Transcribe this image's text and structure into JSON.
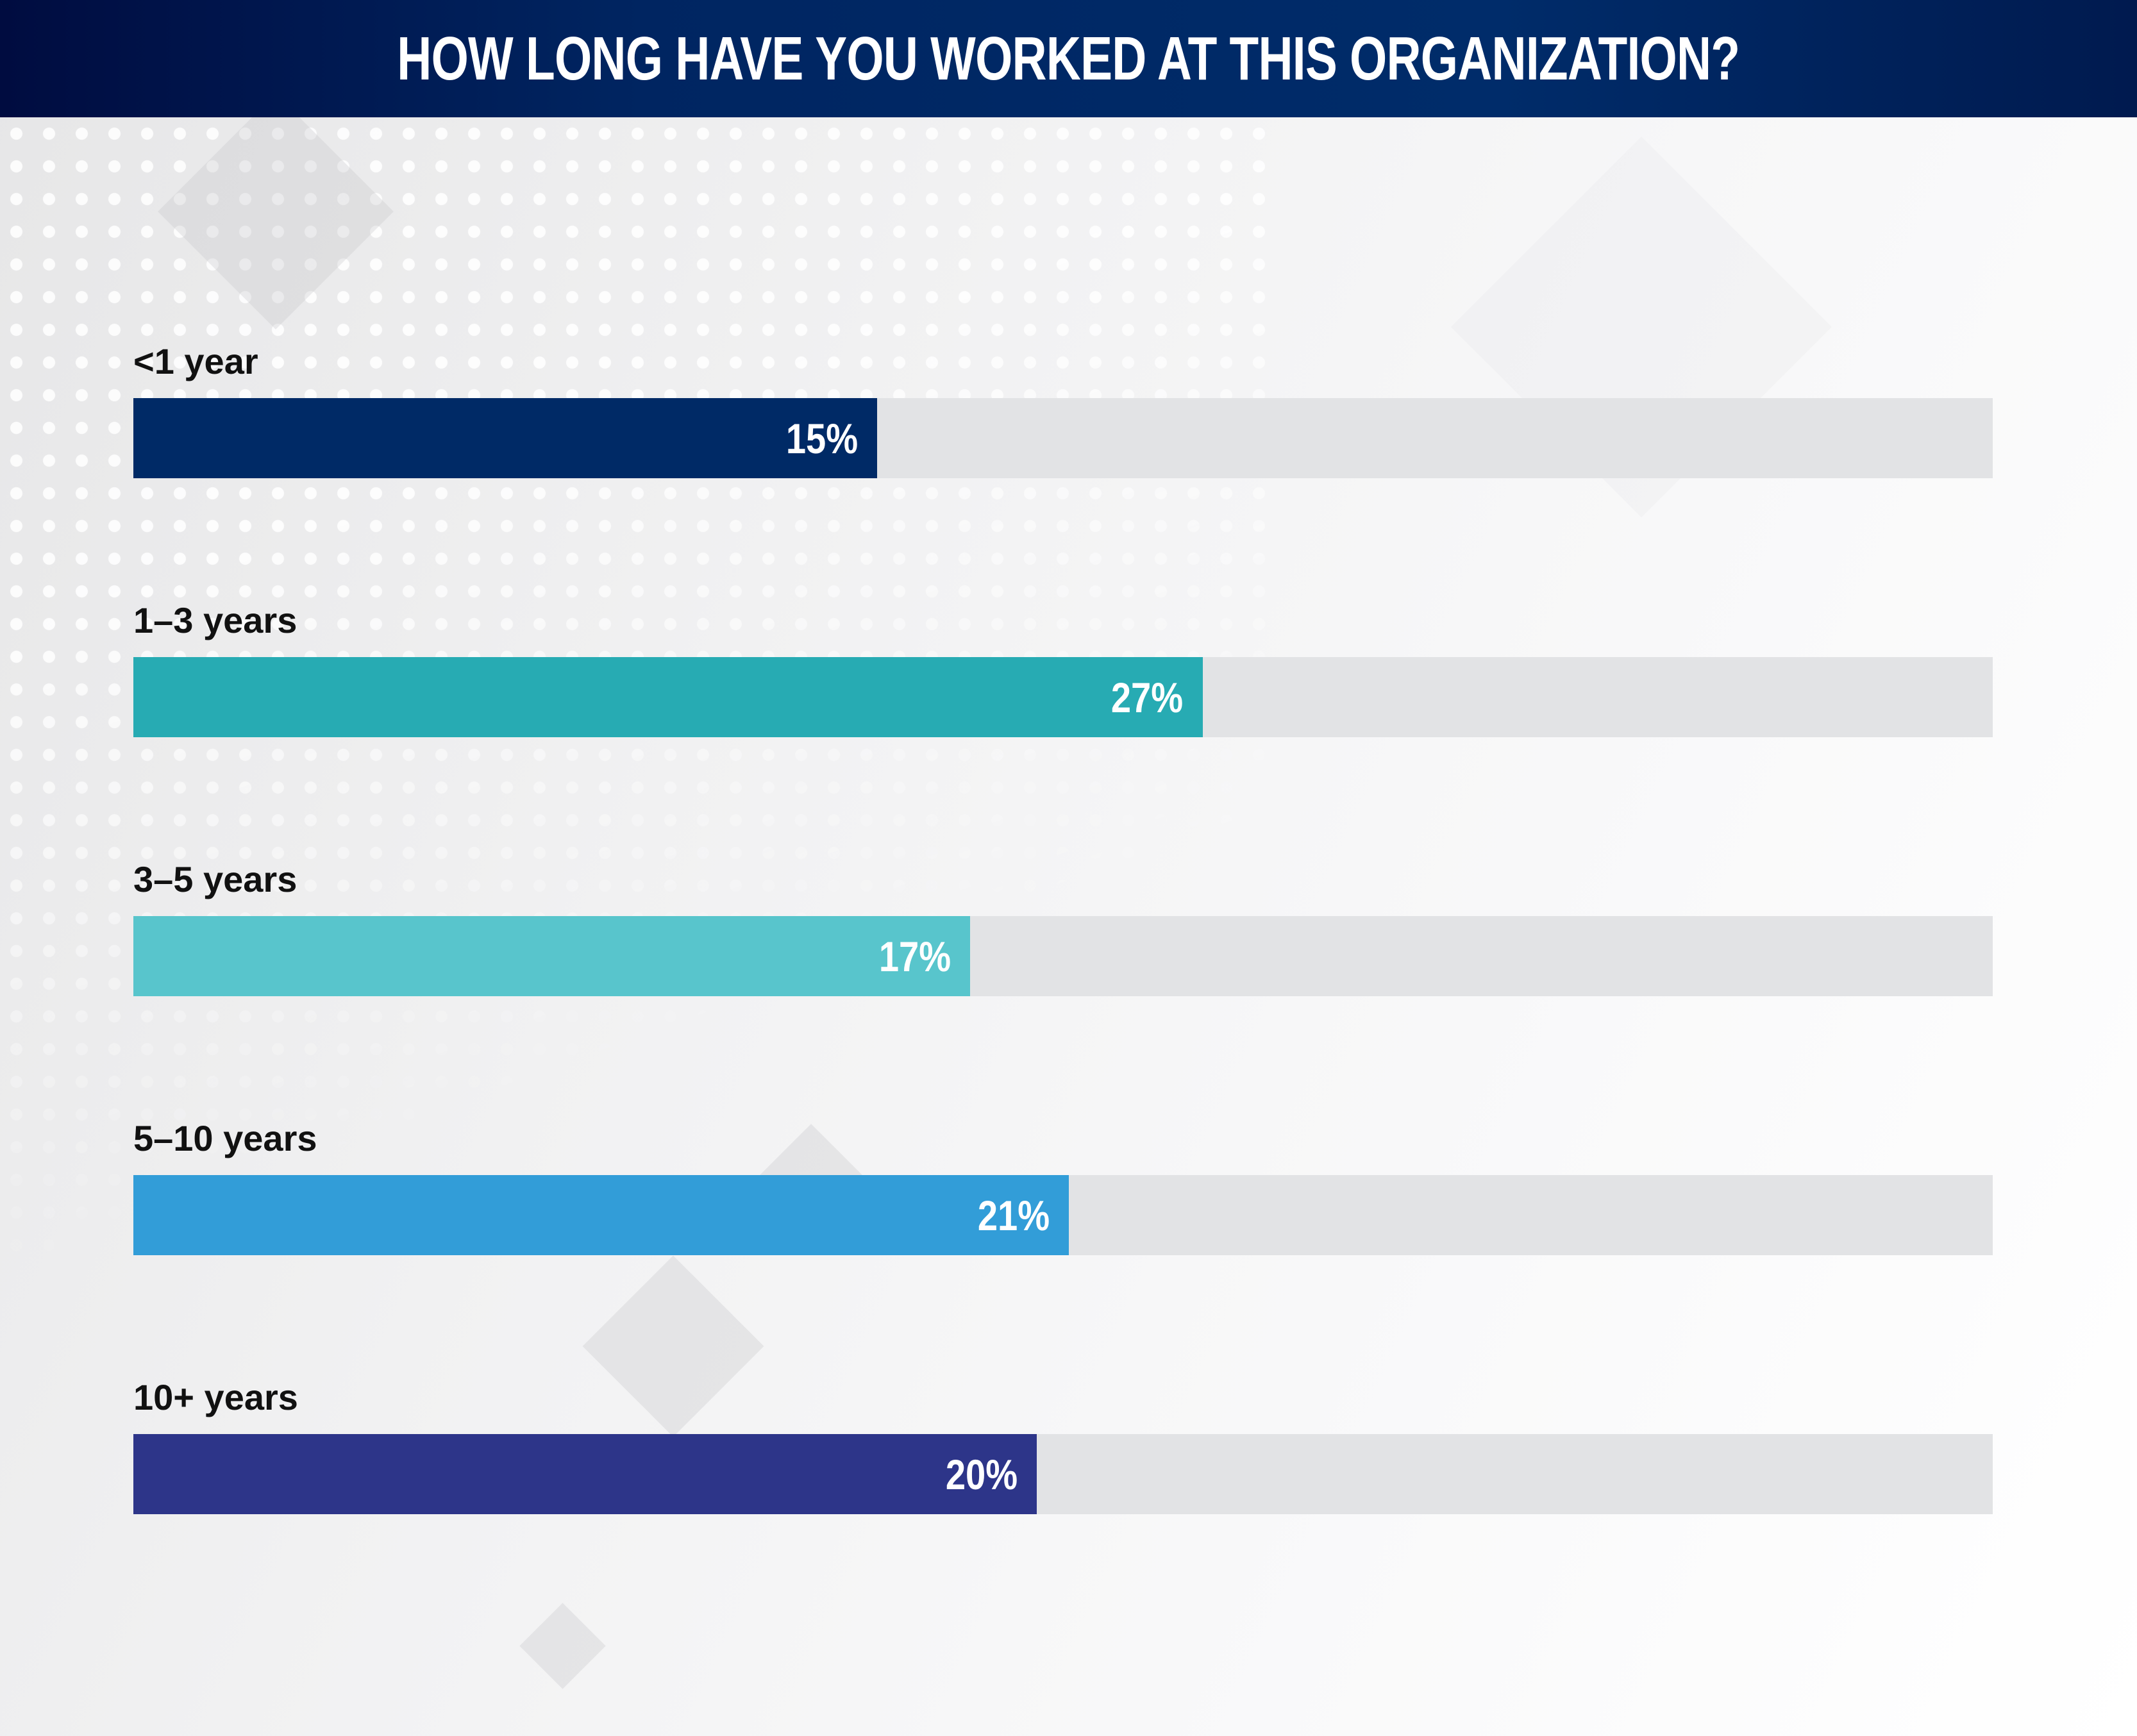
{
  "chart_data": {
    "type": "bar",
    "orientation": "horizontal",
    "title": "HOW LONG HAVE YOU WORKED AT THIS ORGANIZATION?",
    "categories": [
      "<1 year",
      "1–3 years",
      "3–5 years",
      "5–10 years",
      "10+ years"
    ],
    "values": [
      15,
      27,
      17,
      21,
      20
    ],
    "value_labels": [
      "15%",
      "27%",
      "17%",
      "21%",
      "20%"
    ],
    "fill_fraction": [
      0.4,
      0.575,
      0.45,
      0.503,
      0.486
    ],
    "colors": [
      "#002a66",
      "#27abb3",
      "#58c5cc",
      "#329dd8",
      "#2d3589"
    ],
    "track_color": "#e2e3e5",
    "xlabel": "",
    "ylabel": "",
    "grid": false
  }
}
